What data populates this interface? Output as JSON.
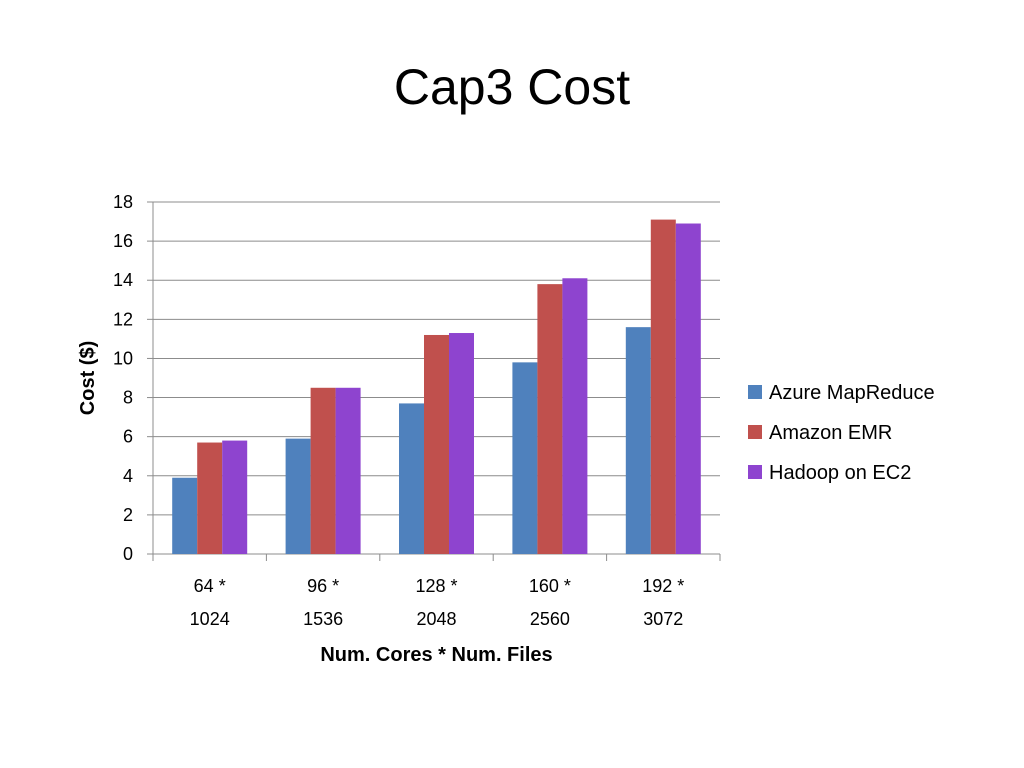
{
  "slide": {
    "title": "Cap3 Cost"
  },
  "chart_data": {
    "type": "bar",
    "title": "",
    "xlabel": "Num. Cores * Num. Files",
    "ylabel": "Cost ($)",
    "ylim": [
      0,
      18
    ],
    "yticks": [
      0,
      2,
      4,
      6,
      8,
      10,
      12,
      14,
      16,
      18
    ],
    "grid": true,
    "legend_position": "right",
    "categories": [
      [
        "64 *",
        "1024"
      ],
      [
        "96 *",
        "1536"
      ],
      [
        "128 *",
        "2048"
      ],
      [
        "160 *",
        "2560"
      ],
      [
        "192 *",
        "3072"
      ]
    ],
    "series": [
      {
        "name": "Azure MapReduce",
        "color": "#4F81BD",
        "values": [
          3.9,
          5.9,
          7.7,
          9.8,
          11.6
        ]
      },
      {
        "name": "Amazon EMR",
        "color": "#C0504D",
        "values": [
          5.7,
          8.5,
          11.2,
          13.8,
          17.1
        ]
      },
      {
        "name": "Hadoop on EC2",
        "color": "#8E44CF",
        "values": [
          5.8,
          8.5,
          11.3,
          14.1,
          16.9
        ]
      }
    ]
  }
}
